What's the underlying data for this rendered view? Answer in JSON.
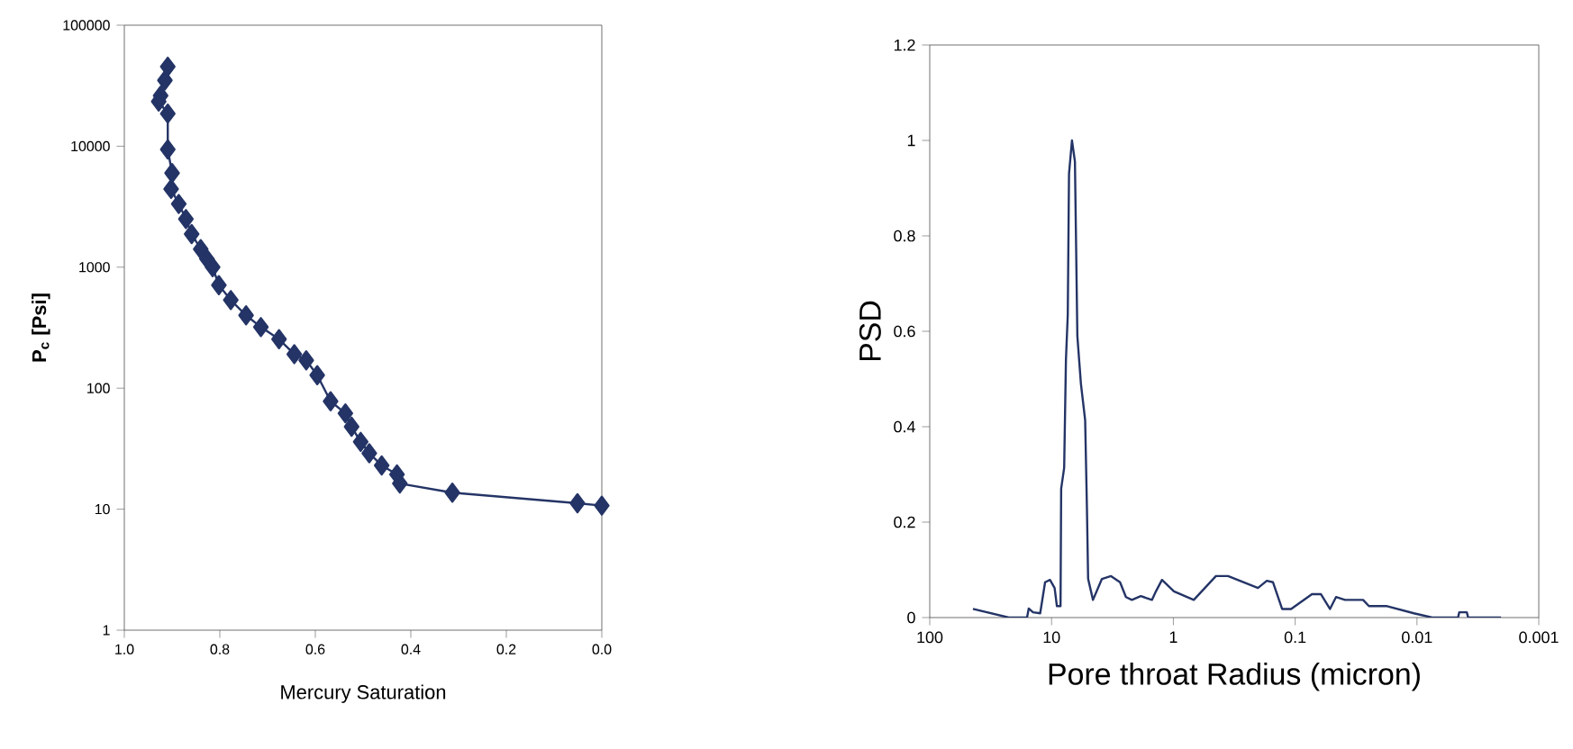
{
  "chart_data": [
    {
      "type": "line",
      "xlabel": "Mercury Saturation",
      "ylabel": "P$_{c}$ [Psi]",
      "log": "y",
      "marker": "diamond",
      "line_style": "solid",
      "grid": false,
      "xlim": [
        1.0,
        0.0
      ],
      "xticks": [
        {
          "value": 1.0,
          "label": "1.0"
        },
        {
          "value": 0.8,
          "label": "0.8"
        },
        {
          "value": 0.6,
          "label": "0.6"
        },
        {
          "value": 0.4,
          "label": "0.4"
        },
        {
          "value": 0.2,
          "label": "0.2"
        },
        {
          "value": 0.0,
          "label": "0.0"
        }
      ],
      "ylim": [
        1,
        100000
      ],
      "yticks": [
        1,
        10,
        100,
        1000,
        10000,
        100000
      ],
      "x": [
        0.909,
        0.915,
        0.924,
        0.928,
        0.909,
        0.909,
        0.9,
        0.902,
        0.886,
        0.871,
        0.859,
        0.84,
        0.827,
        0.815,
        0.802,
        0.777,
        0.745,
        0.714,
        0.676,
        0.644,
        0.619,
        0.596,
        0.568,
        0.537,
        0.524,
        0.505,
        0.487,
        0.461,
        0.429,
        0.423,
        0.313,
        0.051,
        0.0
      ],
      "series": [
        {
          "color": "#243466",
          "values": [
            45400,
            35000,
            26200,
            23400,
            18600,
            9400,
            6000,
            4430,
            3330,
            2500,
            1880,
            1410,
            1170,
            1000,
            710,
            535,
            400,
            320,
            254,
            191,
            170,
            128,
            78,
            62,
            48,
            36,
            29,
            23,
            19.4,
            16.3,
            13.7,
            11.2,
            10.7
          ]
        }
      ]
    },
    {
      "type": "line",
      "xlabel": "Pore throat Radius (micron)",
      "ylabel": "PSD",
      "log": "x",
      "marker": "none",
      "line_style": "solid",
      "grid": false,
      "xlim": [
        100,
        0.001
      ],
      "xticks": [
        100,
        10,
        1,
        0.1,
        0.01,
        0.001
      ],
      "ylim": [
        0,
        1.2
      ],
      "yticks": [
        0,
        0.2,
        0.4,
        0.6,
        0.8,
        1,
        1.2
      ],
      "x": [
        44.2,
        22.4,
        15.9,
        15.4,
        14.2,
        12.4,
        11.3,
        10.3,
        9.44,
        9.04,
        8.44,
        8.34,
        7.88,
        7.62,
        7.36,
        7.19,
        6.8,
        6.43,
        6.14,
        5.74,
        5.3,
        5.12,
        5.01,
        4.57,
        3.86,
        3.25,
        2.74,
        2.45,
        2.19,
        1.85,
        1.5,
        1.39,
        1.24,
        0.99,
        0.68,
        0.447,
        0.356,
        0.202,
        0.171,
        0.152,
        0.128,
        0.108,
        0.0728,
        0.0614,
        0.0518,
        0.0462,
        0.039,
        0.0277,
        0.0248,
        0.0176,
        0.0106,
        0.0075,
        0.0046,
        0.0045,
        0.0039,
        0.0038,
        0.00204
      ],
      "series": [
        {
          "color": "#243466",
          "values": [
            0.018,
            0,
            0,
            0.019,
            0.011,
            0.009,
            0.074,
            0.079,
            0.062,
            0.024,
            0.024,
            0.27,
            0.314,
            0.54,
            0.635,
            0.93,
            1.0,
            0.956,
            0.59,
            0.49,
            0.414,
            0.225,
            0.081,
            0.037,
            0.081,
            0.087,
            0.074,
            0.043,
            0.037,
            0.045,
            0.037,
            0.055,
            0.079,
            0.055,
            0.037,
            0.087,
            0.087,
            0.062,
            0.077,
            0.074,
            0.018,
            0.018,
            0.049,
            0.049,
            0.018,
            0.043,
            0.037,
            0.037,
            0.024,
            0.024,
            0.009,
            0,
            0,
            0.011,
            0.011,
            0,
            0
          ]
        }
      ]
    }
  ]
}
